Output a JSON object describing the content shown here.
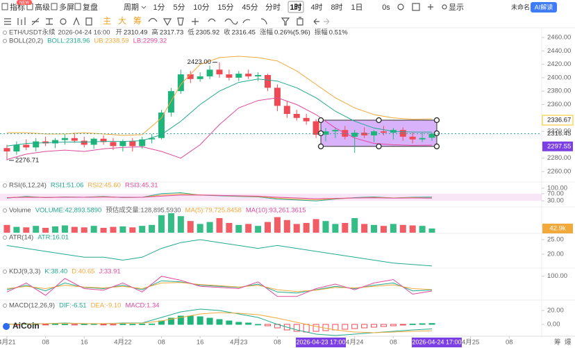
{
  "toolbar": {
    "left": [
      "指标",
      "高级",
      "多屏",
      "复盘"
    ],
    "badge": "NEW",
    "period_label": "周期",
    "periods": [
      "1分",
      "5分",
      "10分",
      "15分",
      "45分",
      "分时",
      "1时",
      "4时",
      "8时",
      "1日"
    ],
    "active": 6,
    "countdown": "0s",
    "display": "显示",
    "layout": "未命名",
    "ai": "AI解读",
    "main_tools": [
      "主",
      "大",
      "筹"
    ]
  },
  "watermark": "AiCoin",
  "corner": [
    "筹",
    "爆"
  ],
  "x_axis": {
    "xlim": [
      -5,
      110
    ],
    "xticks": [
      {
        "value": 0,
        "label": "4月21"
      },
      {
        "value": 8,
        "label": "08"
      },
      16,
      {
        "value": 24,
        "label": "4月22"
      },
      {
        "value": 32,
        "label": "08"
      },
      {
        "value": 40,
        "label": "16"
      },
      {
        "value": 48,
        "label": "4月23"
      },
      {
        "value": 56,
        "label": "08"
      },
      {
        "value": 72,
        "label": "4月24"
      },
      {
        "value": 80,
        "label": "08"
      },
      {
        "value": 96,
        "label": "4月25"
      },
      {
        "value": 104,
        "label": "08"
      }
    ],
    "highlights": [
      {
        "value": 65,
        "label": "2026-04-23 17:00"
      },
      {
        "value": 89,
        "label": "2026-04-24 17:00"
      }
    ]
  },
  "chart_data": [
    {
      "type": "candlestick",
      "title": "ETH/USDT永续",
      "time": "2026-04-24 16:00",
      "stats": [
        {
          "label": "开",
          "value": 2310.49
        },
        {
          "label": "高",
          "value": 2317.73
        },
        {
          "label": "低",
          "value": 2305.92
        },
        {
          "label": "收",
          "value": 2316.45
        },
        {
          "label": "涨幅",
          "value": "0.26%(5.96)"
        },
        {
          "label": "振幅",
          "value": "0.51%"
        }
      ],
      "up_color": "#1fb57a",
      "down_color": "#ef4a54",
      "x": [
        0,
        2,
        4,
        6,
        8,
        10,
        12,
        14,
        16,
        18,
        20,
        22,
        24,
        26,
        28,
        30,
        32,
        34,
        36,
        38,
        40,
        42,
        44,
        46,
        48,
        50,
        52,
        54,
        56,
        58,
        60,
        62,
        64,
        66,
        68,
        70,
        72,
        74,
        76,
        78,
        80,
        82,
        84,
        86,
        88
      ],
      "open": [
        2295,
        2290,
        2300,
        2296,
        2305,
        2302,
        2307,
        2310,
        2306,
        2300,
        2309,
        2304,
        2298,
        2305,
        2298,
        2308,
        2310,
        2348,
        2380,
        2405,
        2398,
        2402,
        2412,
        2405,
        2400,
        2406,
        2402,
        2404,
        2385,
        2358,
        2346,
        2340,
        2335,
        2315,
        2320,
        2322,
        2312,
        2318,
        2314,
        2320,
        2318,
        2322,
        2312,
        2308,
        2310.49
      ],
      "high": [
        2300,
        2305,
        2308,
        2310,
        2312,
        2310,
        2316,
        2318,
        2312,
        2311,
        2314,
        2310,
        2308,
        2310,
        2312,
        2316,
        2352,
        2385,
        2412,
        2410,
        2408,
        2418,
        2423,
        2412,
        2410,
        2412,
        2408,
        2406,
        2390,
        2365,
        2352,
        2346,
        2338,
        2325,
        2326,
        2328,
        2322,
        2326,
        2322,
        2328,
        2325,
        2326,
        2318,
        2318,
        2317.73
      ],
      "low": [
        2276.71,
        2285,
        2292,
        2290,
        2298,
        2295,
        2300,
        2303,
        2296,
        2294,
        2300,
        2292,
        2290,
        2290,
        2294,
        2302,
        2308,
        2342,
        2376,
        2392,
        2394,
        2398,
        2400,
        2396,
        2395,
        2398,
        2395,
        2380,
        2350,
        2340,
        2336,
        2330,
        2310,
        2305,
        2310,
        2308,
        2288,
        2310,
        2304,
        2314,
        2308,
        2306,
        2302,
        2304,
        2305.92
      ],
      "close": [
        2290,
        2300,
        2296,
        2305,
        2302,
        2307,
        2310,
        2306,
        2300,
        2309,
        2304,
        2298,
        2305,
        2298,
        2308,
        2310,
        2348,
        2380,
        2405,
        2398,
        2402,
        2412,
        2405,
        2400,
        2406,
        2402,
        2404,
        2385,
        2358,
        2346,
        2340,
        2335,
        2315,
        2320,
        2322,
        2312,
        2318,
        2314,
        2320,
        2318,
        2322,
        2312,
        2308,
        2310,
        2316.45
      ],
      "ylim": [
        2248.6,
        2472.4
      ],
      "yticks": [
        {
          "value": 2260,
          "label": "2260.00"
        },
        {
          "value": 2280,
          "label": "2280.00"
        },
        {
          "value": 2300,
          "label": "2300.00"
        },
        {
          "value": 2320,
          "label": "2320.00"
        },
        {
          "value": 2340,
          "label": "2340.00"
        },
        {
          "value": 2360,
          "label": "2360.00"
        },
        {
          "value": 2380,
          "label": "2380.00"
        },
        {
          "value": 2400,
          "label": "2400.00"
        },
        {
          "value": 2420,
          "label": "2420.00"
        },
        {
          "value": 2440,
          "label": "2440.00"
        },
        {
          "value": 2460,
          "label": "2460.00"
        }
      ],
      "overlays": {
        "label": "BOLL(20,2)",
        "x": [
          0,
          4,
          8,
          12,
          16,
          20,
          24,
          28,
          32,
          36,
          40,
          44,
          48,
          52,
          56,
          60,
          64,
          68,
          72,
          76,
          80,
          84,
          88
        ],
        "series": [
          {
            "name": "BOLL:2318.96",
            "color": "#21a98f",
            "values": [
              2298,
              2302,
              2303,
              2304,
              2304,
              2305,
              2305,
              2306,
              2315,
              2335,
              2360,
              2380,
              2393,
              2398,
              2395,
              2385,
              2370,
              2350,
              2335,
              2325,
              2320,
              2319,
              2318.96
            ]
          },
          {
            "name": "UB:2338.59",
            "color": "#f2a93b",
            "values": [
              2318,
              2318,
              2316,
              2316,
              2318,
              2316,
              2314,
              2315,
              2340,
              2390,
              2420,
              2430,
              2432,
              2430,
              2425,
              2410,
              2390,
              2370,
              2355,
              2345,
              2340,
              2338,
              2338.59
            ]
          },
          {
            "name": "LB:2299.32",
            "color": "#e0489c",
            "values": [
              2278,
              2286,
              2290,
              2292,
              2290,
              2294,
              2296,
              2297,
              2290,
              2280,
              2300,
              2330,
              2355,
              2366,
              2370,
              2360,
              2345,
              2325,
              2310,
              2302,
              2300,
              2299,
              2299.32
            ]
          }
        ]
      },
      "annotations": [
        {
          "x": 44,
          "value": 2423,
          "label": "2423.00"
        },
        {
          "x": 0,
          "value": 2276.71,
          "label": "2276.71"
        }
      ],
      "last": {
        "value": 2316.45,
        "label": "2316.45",
        "color": "#21a98f"
      },
      "box": {
        "top": {
          "value": 2336.67,
          "label": "2336.67"
        },
        "bottom": {
          "value": 2297.55,
          "label": "2297.55"
        },
        "color": "#a855f7"
      }
    },
    {
      "type": "line",
      "label": "RSI(6,12,24)",
      "x": [
        0,
        4,
        8,
        12,
        16,
        20,
        24,
        28,
        32,
        36,
        40,
        44,
        48,
        52,
        56,
        60,
        64,
        68,
        72,
        76,
        80,
        84,
        88
      ],
      "ylim": [
        0,
        100
      ],
      "yticks": [
        {
          "value": 30,
          "label": "30.00"
        },
        {
          "value": 70,
          "label": "70.00"
        },
        {
          "value": 100,
          "label": "100.00"
        }
      ],
      "series": [
        {
          "name": "RSI1:51.06",
          "color": "#21a98f",
          "values": [
            45,
            55,
            48,
            52,
            50,
            55,
            48,
            50,
            70,
            75,
            62,
            58,
            55,
            52,
            40,
            35,
            30,
            40,
            48,
            52,
            46,
            50,
            51.06
          ]
        },
        {
          "name": "RSI2:45.60",
          "color": "#f2a93b",
          "values": [
            47,
            52,
            49,
            51,
            50,
            53,
            49,
            50,
            62,
            68,
            63,
            60,
            57,
            54,
            45,
            40,
            36,
            42,
            46,
            49,
            46,
            48,
            45.6
          ]
        },
        {
          "name": "RSI3:45.31",
          "color": "#e0489c",
          "values": [
            48,
            50,
            49,
            50,
            50,
            51,
            50,
            50,
            56,
            62,
            62,
            60,
            58,
            56,
            50,
            46,
            42,
            44,
            46,
            47,
            45,
            46,
            45.31
          ]
        }
      ]
    },
    {
      "type": "bar",
      "label": "Volume",
      "legend": [
        {
          "name": "VOLUME:42,893.5890",
          "color": "#21a98f"
        },
        {
          "name": "预估成交量:128,895.5930",
          "color": "#666666"
        },
        {
          "name": "MA(5):79,725.8458",
          "color": "#f2a93b"
        },
        {
          "name": "MA(10):93,261.3615",
          "color": "#e0489c"
        }
      ],
      "ylim": [
        0,
        250000
      ],
      "values": [
        80000,
        60000,
        55000,
        70000,
        50000,
        65000,
        75000,
        60000,
        55000,
        70000,
        50000,
        60000,
        65000,
        55000,
        70000,
        80000,
        180000,
        200000,
        170000,
        120000,
        90000,
        110000,
        150000,
        100000,
        80000,
        90000,
        70000,
        110000,
        160000,
        130000,
        90000,
        100000,
        140000,
        120000,
        90000,
        100000,
        150000,
        90000,
        80000,
        70000,
        90000,
        80000,
        75000,
        70000,
        42893.589
      ],
      "tag": {
        "value": 42893.589,
        "label": "42.9k",
        "color": "#f2a93b"
      }
    },
    {
      "type": "line",
      "label": "ATR(14)",
      "x": [
        0,
        4,
        8,
        12,
        16,
        20,
        24,
        28,
        32,
        36,
        40,
        44,
        48,
        52,
        56,
        60,
        64,
        68,
        72,
        76,
        80,
        84,
        88
      ],
      "ylim": [
        15.5,
        27.5
      ],
      "yticks": [
        {
          "value": 20,
          "label": "20.00"
        },
        {
          "value": 25,
          "label": "25.00"
        }
      ],
      "series": [
        {
          "name": "ATR:16.01",
          "color": "#21a98f",
          "values": [
            23,
            22,
            21,
            20,
            19,
            19,
            18,
            19,
            22,
            24,
            25,
            24,
            23,
            22,
            23,
            22,
            21,
            20,
            19,
            18,
            17,
            16.5,
            16.01
          ]
        }
      ]
    },
    {
      "type": "line",
      "label": "KDJ(9,3,3)",
      "x": [
        0,
        4,
        8,
        12,
        16,
        20,
        24,
        28,
        32,
        36,
        40,
        44,
        48,
        52,
        56,
        60,
        64,
        68,
        72,
        76,
        80,
        84,
        88
      ],
      "ylim": [
        0,
        130
      ],
      "yticks": [
        {
          "value": 100,
          "label": "100.00"
        }
      ],
      "series": [
        {
          "name": "K:38.40",
          "color": "#21a98f",
          "values": [
            40,
            60,
            35,
            70,
            50,
            45,
            60,
            40,
            80,
            75,
            60,
            55,
            50,
            65,
            30,
            25,
            40,
            55,
            45,
            60,
            70,
            35,
            38.4
          ]
        },
        {
          "name": "D:40.65",
          "color": "#f2a93b",
          "values": [
            45,
            55,
            45,
            60,
            52,
            48,
            55,
            45,
            70,
            72,
            63,
            58,
            52,
            60,
            40,
            32,
            38,
            50,
            48,
            55,
            62,
            45,
            40.65
          ]
        },
        {
          "name": "J:33.91",
          "color": "#e0489c",
          "values": [
            30,
            70,
            15,
            90,
            45,
            38,
            70,
            30,
            100,
            82,
            55,
            50,
            45,
            75,
            10,
            10,
            45,
            65,
            40,
            70,
            85,
            20,
            33.91
          ]
        }
      ]
    },
    {
      "type": "combo",
      "label": "MACD(12,26,9)",
      "x": [
        0,
        4,
        8,
        12,
        16,
        20,
        24,
        28,
        32,
        36,
        40,
        44,
        48,
        52,
        56,
        60,
        64,
        68,
        72,
        76,
        80,
        84,
        88
      ],
      "ylim": [
        -15,
        28
      ],
      "yticks": [
        {
          "value": 0,
          "label": "0.00"
        },
        {
          "value": 20,
          "label": "20.00"
        }
      ],
      "series": [
        {
          "name": "DIF:-6.51",
          "color": "#21a98f",
          "values": [
            0,
            1,
            1,
            2,
            1,
            1,
            2,
            2,
            10,
            18,
            22,
            20,
            15,
            10,
            0,
            -8,
            -14,
            -16,
            -14,
            -12,
            -10,
            -8,
            -6.51
          ]
        },
        {
          "name": "DEA:-9.10",
          "color": "#f2a93b",
          "values": [
            0,
            0.5,
            1,
            1.5,
            1.2,
            1.1,
            1.5,
            1.8,
            5,
            10,
            15,
            17,
            16,
            14,
            9,
            3,
            -3,
            -8,
            -11,
            -12,
            -11,
            -10,
            -9.1
          ]
        }
      ],
      "histogram": {
        "name": "MACD:1.34",
        "color": "#e0489c",
        "values": [
          0.5,
          -0.5,
          0.8,
          0.6,
          -0.4,
          0.5,
          0.3,
          -0.3,
          0.4,
          0.6,
          -0.5,
          -0.3,
          0.4,
          0.2,
          0.5,
          0.6,
          5,
          9,
          12,
          12,
          11,
          9,
          7,
          5,
          3,
          2,
          0,
          -2,
          -5,
          -8,
          -10,
          -11,
          -10,
          -9,
          -8,
          -7,
          -6,
          -5,
          -4,
          -3,
          -2,
          -1,
          0.5,
          1,
          1.34
        ]
      }
    }
  ]
}
